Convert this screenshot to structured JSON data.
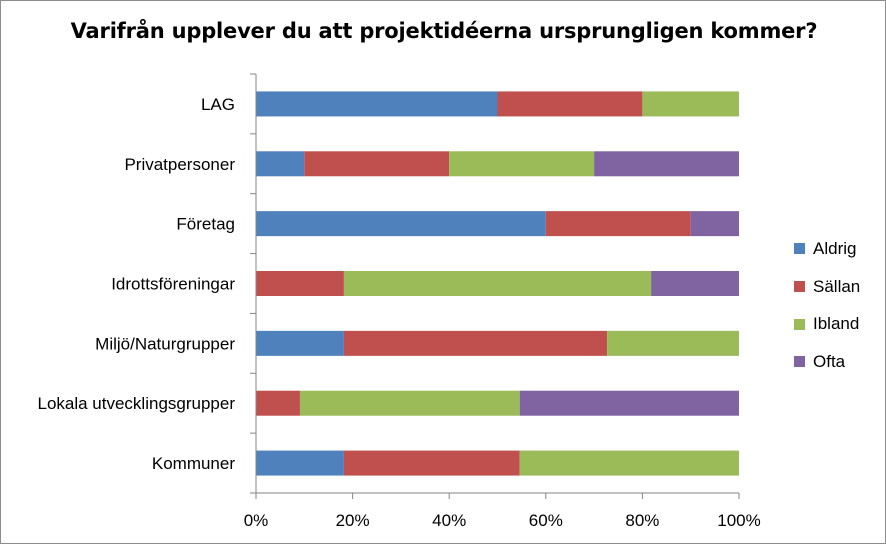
{
  "chart_data": {
    "type": "bar",
    "orientation": "horizontal",
    "stacked": "percent",
    "title": "Varifrån upplever du att projektidéerna ursprungligen kommer?",
    "categories": [
      "LAG",
      "Privatpersoner",
      "Företag",
      "Idrottsföreningar",
      "Miljö/Naturgrupper",
      "Lokala utvecklingsgrupper",
      "Kommuner"
    ],
    "series": [
      {
        "name": "Aldrig",
        "color": "#4F81BD",
        "values": [
          50,
          10,
          60,
          0,
          18.2,
          0,
          18.2
        ]
      },
      {
        "name": "Sällan",
        "color": "#C0504D",
        "values": [
          30,
          30,
          30,
          18.2,
          54.5,
          9.1,
          36.4
        ]
      },
      {
        "name": "Ibland",
        "color": "#9BBB59",
        "values": [
          20,
          30,
          0,
          63.6,
          27.3,
          45.5,
          45.4
        ]
      },
      {
        "name": "Ofta",
        "color": "#8064A2",
        "values": [
          0,
          30,
          10,
          18.2,
          0,
          45.4,
          0
        ]
      }
    ],
    "xticks": [
      "0%",
      "20%",
      "40%",
      "60%",
      "80%",
      "100%"
    ],
    "xlim": [
      0,
      100
    ],
    "grid": false,
    "legend_position": "right"
  }
}
